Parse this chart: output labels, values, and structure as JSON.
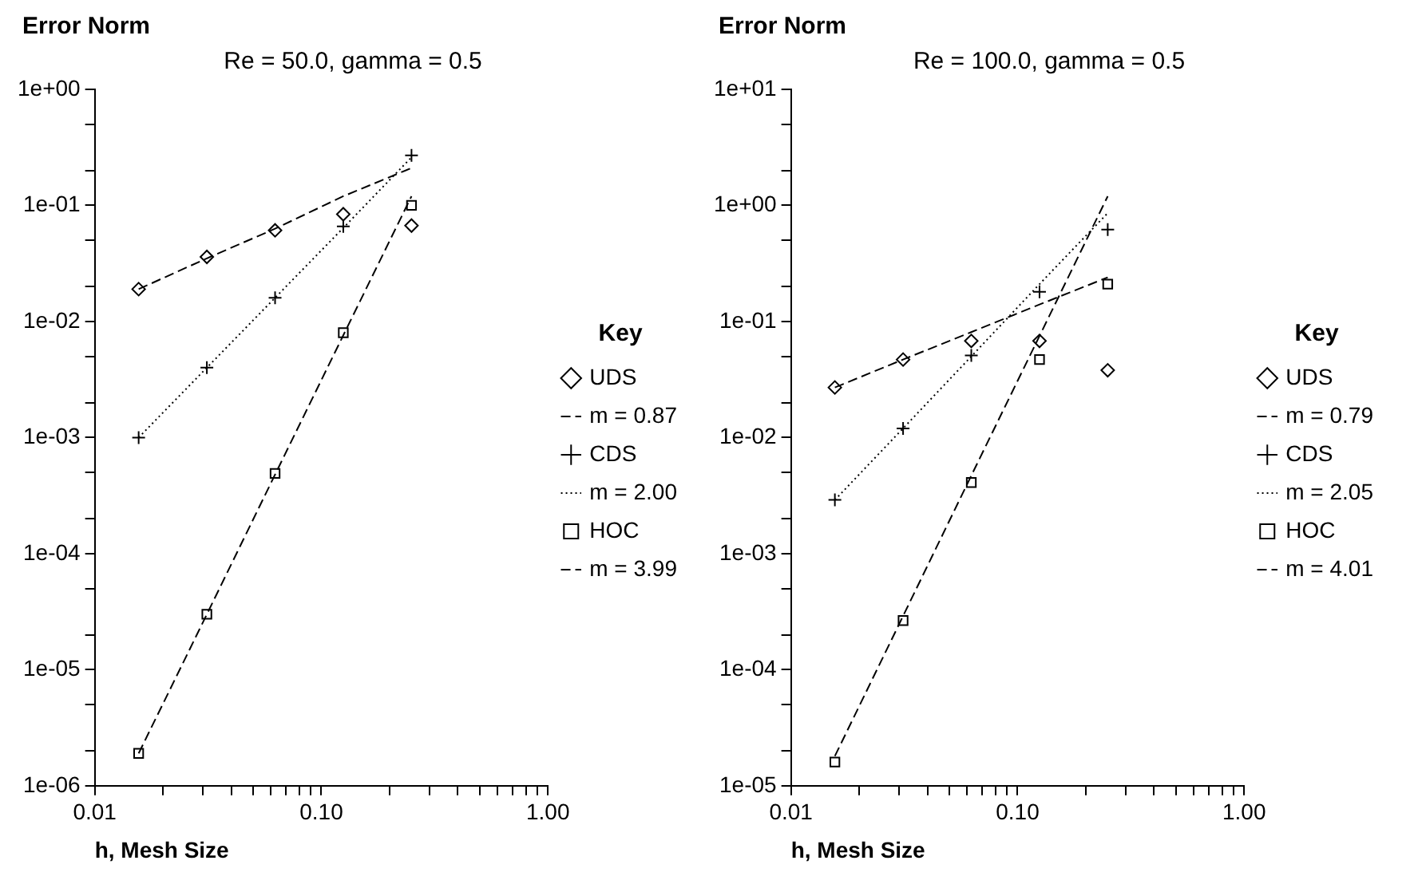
{
  "chart_data": [
    {
      "type": "scatter",
      "title": "Re = 50.0, gamma = 0.5",
      "xlabel": "h, Mesh Size",
      "ylabel": "Error Norm",
      "legend_title": "Key",
      "legend": "right",
      "log": "xy",
      "grid": false,
      "x": [
        0.015625,
        0.03125,
        0.0625,
        0.125,
        0.25
      ],
      "xlim": [
        0.01,
        1
      ],
      "xticks": [
        {
          "value": 0.01,
          "label": "0.01"
        },
        {
          "value": 0.02,
          "label": null
        },
        {
          "value": 0.03,
          "label": null
        },
        {
          "value": 0.04,
          "label": null
        },
        {
          "value": 0.05,
          "label": null
        },
        {
          "value": 0.06,
          "label": null
        },
        {
          "value": 0.07,
          "label": null
        },
        {
          "value": 0.08,
          "label": null
        },
        {
          "value": 0.09,
          "label": null
        },
        {
          "value": 0.1,
          "label": "0.10"
        },
        {
          "value": 0.2,
          "label": null
        },
        {
          "value": 0.3,
          "label": null
        },
        {
          "value": 0.4,
          "label": null
        },
        {
          "value": 0.5,
          "label": null
        },
        {
          "value": 0.6,
          "label": null
        },
        {
          "value": 0.7,
          "label": null
        },
        {
          "value": 0.8,
          "label": null
        },
        {
          "value": 0.9,
          "label": null
        },
        {
          "value": 1,
          "label": "1.00"
        }
      ],
      "ylim": [
        1e-06,
        1
      ],
      "yticks": [
        {
          "value": 1e-06,
          "label": "1e-06"
        },
        {
          "value": 2e-06,
          "label": null
        },
        {
          "value": 5e-06,
          "label": null
        },
        {
          "value": 1e-05,
          "label": "1e-05"
        },
        {
          "value": 2e-05,
          "label": null
        },
        {
          "value": 5e-05,
          "label": null
        },
        {
          "value": 0.0001,
          "label": "1e-04"
        },
        {
          "value": 0.0002,
          "label": null
        },
        {
          "value": 0.0005,
          "label": null
        },
        {
          "value": 0.001,
          "label": "1e-03"
        },
        {
          "value": 0.002,
          "label": null
        },
        {
          "value": 0.005,
          "label": null
        },
        {
          "value": 0.01,
          "label": "1e-02"
        },
        {
          "value": 0.02,
          "label": null
        },
        {
          "value": 0.05,
          "label": null
        },
        {
          "value": 0.1,
          "label": "1e-01"
        },
        {
          "value": 0.2,
          "label": null
        },
        {
          "value": 0.5,
          "label": null
        },
        {
          "value": 1,
          "label": "1e+00"
        }
      ],
      "series": [
        {
          "name": "UDS",
          "type": "scatter",
          "marker": "diamond",
          "color": "#000000",
          "values": [
            0.019,
            0.036,
            0.061,
            0.084,
            0.067
          ]
        },
        {
          "name": "m = 0.87",
          "type": "line",
          "marker": "none",
          "line_style": "dashed",
          "color": "#000000",
          "values": [
            0.019,
            0.035,
            0.063,
            0.12,
            0.21
          ]
        },
        {
          "name": "CDS",
          "type": "scatter",
          "marker": "cross",
          "color": "#000000",
          "values": [
            0.001,
            0.004,
            0.016,
            0.066,
            0.27
          ]
        },
        {
          "name": "m = 2.00",
          "type": "line",
          "marker": "none",
          "line_style": "dotted",
          "color": "#000000",
          "values": [
            0.001,
            0.004,
            0.016,
            0.064,
            0.26
          ]
        },
        {
          "name": "HOC",
          "type": "scatter",
          "marker": "square",
          "color": "#000000",
          "values": [
            1.9e-06,
            3e-05,
            0.00049,
            0.008,
            0.1
          ]
        },
        {
          "name": "m = 3.99",
          "type": "line",
          "marker": "none",
          "line_style": "dashed",
          "color": "#000000",
          "values": [
            1.9e-06,
            3e-05,
            0.00048,
            0.0076,
            0.12
          ]
        }
      ]
    },
    {
      "type": "scatter",
      "title": "Re = 100.0, gamma = 0.5",
      "xlabel": "h, Mesh Size",
      "ylabel": "Error Norm",
      "legend_title": "Key",
      "legend": "right",
      "log": "xy",
      "grid": false,
      "x": [
        0.015625,
        0.03125,
        0.0625,
        0.125,
        0.25
      ],
      "xlim": [
        0.01,
        1
      ],
      "xticks": [
        {
          "value": 0.01,
          "label": "0.01"
        },
        {
          "value": 0.02,
          "label": null
        },
        {
          "value": 0.03,
          "label": null
        },
        {
          "value": 0.04,
          "label": null
        },
        {
          "value": 0.05,
          "label": null
        },
        {
          "value": 0.06,
          "label": null
        },
        {
          "value": 0.07,
          "label": null
        },
        {
          "value": 0.08,
          "label": null
        },
        {
          "value": 0.09,
          "label": null
        },
        {
          "value": 0.1,
          "label": "0.10"
        },
        {
          "value": 0.2,
          "label": null
        },
        {
          "value": 0.3,
          "label": null
        },
        {
          "value": 0.4,
          "label": null
        },
        {
          "value": 0.5,
          "label": null
        },
        {
          "value": 0.6,
          "label": null
        },
        {
          "value": 0.7,
          "label": null
        },
        {
          "value": 0.8,
          "label": null
        },
        {
          "value": 0.9,
          "label": null
        },
        {
          "value": 1,
          "label": "1.00"
        }
      ],
      "ylim": [
        1e-05,
        10
      ],
      "yticks": [
        {
          "value": 1e-05,
          "label": "1e-05"
        },
        {
          "value": 2e-05,
          "label": null
        },
        {
          "value": 5e-05,
          "label": null
        },
        {
          "value": 0.0001,
          "label": "1e-04"
        },
        {
          "value": 0.0002,
          "label": null
        },
        {
          "value": 0.0005,
          "label": null
        },
        {
          "value": 0.001,
          "label": "1e-03"
        },
        {
          "value": 0.002,
          "label": null
        },
        {
          "value": 0.005,
          "label": null
        },
        {
          "value": 0.01,
          "label": "1e-02"
        },
        {
          "value": 0.02,
          "label": null
        },
        {
          "value": 0.05,
          "label": null
        },
        {
          "value": 0.1,
          "label": "1e-01"
        },
        {
          "value": 0.2,
          "label": null
        },
        {
          "value": 0.5,
          "label": null
        },
        {
          "value": 1,
          "label": "1e+00"
        },
        {
          "value": 2,
          "label": null
        },
        {
          "value": 5,
          "label": null
        },
        {
          "value": 10,
          "label": "1e+01"
        }
      ],
      "series": [
        {
          "name": "UDS",
          "type": "scatter",
          "marker": "diamond",
          "color": "#000000",
          "values": [
            0.027,
            0.047,
            0.068,
            0.068,
            0.038
          ]
        },
        {
          "name": "m = 0.79",
          "type": "line",
          "marker": "none",
          "line_style": "dashed",
          "color": "#000000",
          "values": [
            0.027,
            0.047,
            0.081,
            0.14,
            0.24
          ]
        },
        {
          "name": "CDS",
          "type": "scatter",
          "marker": "cross",
          "color": "#000000",
          "values": [
            0.0029,
            0.012,
            0.051,
            0.18,
            0.62
          ]
        },
        {
          "name": "m = 2.05",
          "type": "line",
          "marker": "none",
          "line_style": "dotted",
          "color": "#000000",
          "values": [
            0.0029,
            0.012,
            0.05,
            0.21,
            0.86
          ]
        },
        {
          "name": "HOC",
          "type": "scatter",
          "marker": "square",
          "color": "#000000",
          "values": [
            1.6e-05,
            0.000265,
            0.0041,
            0.047,
            0.21
          ]
        },
        {
          "name": "m = 4.01",
          "type": "line",
          "marker": "none",
          "line_style": "dashed",
          "color": "#000000",
          "values": [
            1.8e-05,
            0.00029,
            0.0047,
            0.075,
            1.2
          ]
        }
      ]
    }
  ]
}
